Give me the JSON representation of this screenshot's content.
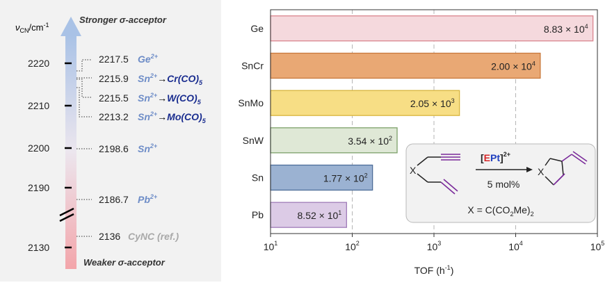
{
  "left": {
    "axis_label_main": "ν",
    "axis_label_sub": "CN",
    "axis_label_unit": "/cm",
    "axis_label_exp": "-1",
    "top_label": "Stronger σ-acceptor",
    "bottom_label": "Weaker σ-acceptor",
    "axis_ticks": [
      "2220",
      "2210",
      "2200",
      "2190",
      "2130"
    ],
    "entries": [
      {
        "value": "2217.5",
        "ion": "Ge",
        "charge": "2+",
        "arrow": "",
        "metal": "",
        "co": "",
        "sub": ""
      },
      {
        "value": "2215.9",
        "ion": "Sn",
        "charge": "2+",
        "arrow": "→",
        "metal": "Cr",
        "co": "(CO)",
        "sub": "5"
      },
      {
        "value": "2215.5",
        "ion": "Sn",
        "charge": "2+",
        "arrow": "→",
        "metal": "W",
        "co": "(CO)",
        "sub": "5"
      },
      {
        "value": "2213.2",
        "ion": "Sn",
        "charge": "2+",
        "arrow": "→",
        "metal": "Mo",
        "co": "(CO)",
        "sub": "5"
      },
      {
        "value": "2198.6",
        "ion": "Sn",
        "charge": "2+",
        "arrow": "",
        "metal": "",
        "co": "",
        "sub": ""
      },
      {
        "value": "2186.7",
        "ion": "Pb",
        "charge": "2+",
        "arrow": "",
        "metal": "",
        "co": "",
        "sub": ""
      },
      {
        "value": "2136",
        "ion": "CyNC (ref.)",
        "charge": "",
        "arrow": "",
        "metal": "",
        "co": "",
        "sub": ""
      }
    ]
  },
  "chart_data": {
    "type": "bar",
    "orientation": "horizontal",
    "categories": [
      "Ge",
      "SnCr",
      "SnMo",
      "SnW",
      "Sn",
      "Pb"
    ],
    "values": [
      88300,
      20000,
      2050,
      354,
      177,
      85.2
    ],
    "value_labels": [
      {
        "mantissa": "8.83 × 10",
        "exp": "4"
      },
      {
        "mantissa": "2.00 × 10",
        "exp": "4"
      },
      {
        "mantissa": "2.05 × 10",
        "exp": "3"
      },
      {
        "mantissa": "3.54 × 10",
        "exp": "2"
      },
      {
        "mantissa": "1.77 × 10",
        "exp": "2"
      },
      {
        "mantissa": "8.52 × 10",
        "exp": "1"
      }
    ],
    "colors": [
      {
        "fill": "#f5d9dd",
        "stroke": "#d9848e"
      },
      {
        "fill": "#e9a874",
        "stroke": "#c9793c"
      },
      {
        "fill": "#f7de85",
        "stroke": "#d9b53c"
      },
      {
        "fill": "#dfe8d6",
        "stroke": "#7ca16a"
      },
      {
        "fill": "#9bb2d2",
        "stroke": "#4d6d99"
      },
      {
        "fill": "#dccbe6",
        "stroke": "#a07bb8"
      }
    ],
    "x_scale": "log",
    "xlim": [
      10,
      100000
    ],
    "x_ticks": [
      {
        "base": "10",
        "exp": "1"
      },
      {
        "base": "10",
        "exp": "2"
      },
      {
        "base": "10",
        "exp": "3"
      },
      {
        "base": "10",
        "exp": "4"
      },
      {
        "base": "10",
        "exp": "5"
      }
    ],
    "xlabel": "TOF (h",
    "xlabel_exp": "-1",
    "xlabel_end": ")",
    "grid": "vertical dashed at 10^2, 10^3, 10^4"
  },
  "inset": {
    "catalyst_open": "[",
    "catalyst_E": "E",
    "catalyst_Pt": "Pt",
    "catalyst_close": "]",
    "catalyst_charge": "2+",
    "loading": "5 mol%",
    "x_label": "X",
    "x_def_prefix": "X = C(CO",
    "x_def_sub": "2",
    "x_def_mid": "Me)",
    "x_def_sub2": "2",
    "colors": {
      "E": "#d62728",
      "Pt": "#1f3fbf",
      "alkyne": "#7a2a9a",
      "alkene": "#7a2a9a"
    }
  },
  "colors": {
    "label_blue": "#6d8cc7",
    "metal_navy": "#1a2d8f",
    "ref_gray": "#a9a9a9",
    "panel_bg": "#f2f2f2"
  }
}
